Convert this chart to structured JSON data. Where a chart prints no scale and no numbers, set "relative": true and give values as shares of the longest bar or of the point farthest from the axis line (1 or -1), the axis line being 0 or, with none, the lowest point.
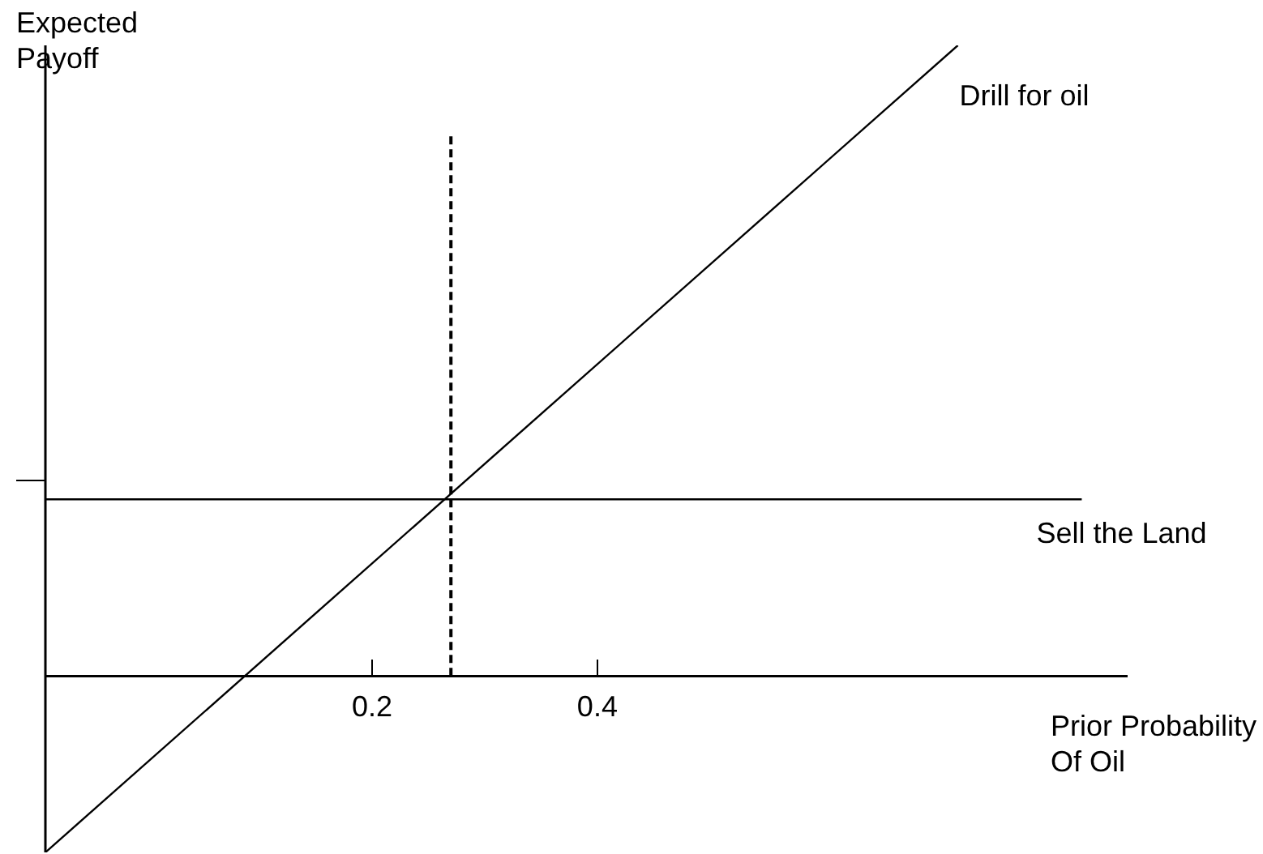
{
  "chart_data": {
    "type": "line",
    "xlabel": "Prior Probability Of Oil",
    "ylabel": "Expected Payoff",
    "relative": true,
    "xlim": [
      -0.09,
      0.87
    ],
    "xticks": [
      0.2,
      0.4
    ],
    "series": [
      {
        "name": "Drill for oil",
        "color": "#000000",
        "x": [
          -0.09,
          0.72
        ],
        "values": [
          -0.28,
          1
        ]
      },
      {
        "name": "Sell the Land",
        "color": "#000000",
        "x": [
          -0.09,
          0.83
        ],
        "values": [
          0.28,
          0.28
        ]
      },
      {
        "color": "#000000",
        "x": [
          0.27,
          0.27
        ],
        "values": [
          0,
          0.86
        ],
        "line_style": "dashed"
      }
    ],
    "grid": false,
    "legend": false
  }
}
